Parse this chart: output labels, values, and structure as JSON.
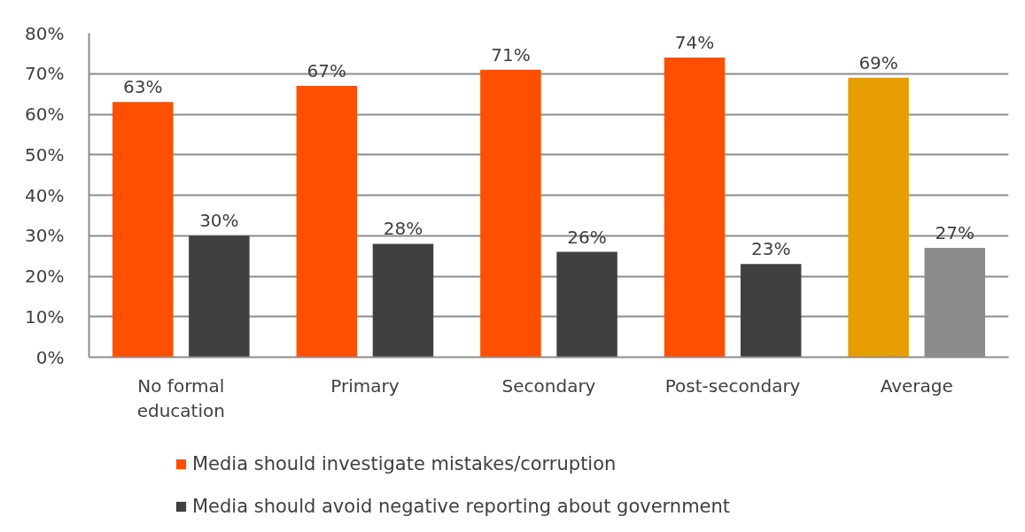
{
  "chart_data": {
    "type": "bar",
    "categories": [
      "No formal education",
      "Primary",
      "Secondary",
      "Post-secondary",
      "Average"
    ],
    "series": [
      {
        "name": "Media should investigate mistakes/corruption",
        "color": "#ff4f00",
        "colors": [
          "#ff4f00",
          "#ff4f00",
          "#ff4f00",
          "#ff4f00",
          "#e69d00"
        ],
        "values": [
          63,
          67,
          71,
          74,
          69
        ],
        "value_labels": [
          "63%",
          "67%",
          "71%",
          "74%",
          "69%"
        ]
      },
      {
        "name": "Media should avoid negative reporting about government",
        "color": "#404040",
        "colors": [
          "#404040",
          "#404040",
          "#404040",
          "#404040",
          "#8c8c8c"
        ],
        "values": [
          30,
          28,
          26,
          23,
          27
        ],
        "value_labels": [
          "30%",
          "28%",
          "26%",
          "23%",
          "27%"
        ]
      }
    ],
    "ylim": [
      0,
      80
    ],
    "yticks": [
      {
        "value": 0,
        "label": "0%"
      },
      {
        "value": 10,
        "label": "10%"
      },
      {
        "value": 20,
        "label": "20%"
      },
      {
        "value": 30,
        "label": "30%"
      },
      {
        "value": 40,
        "label": "40%"
      },
      {
        "value": 50,
        "label": "50%"
      },
      {
        "value": 60,
        "label": "60%"
      },
      {
        "value": 70,
        "label": "70%"
      },
      {
        "value": 80,
        "label": "80%"
      }
    ],
    "grid": "y",
    "legend": "bottom"
  }
}
